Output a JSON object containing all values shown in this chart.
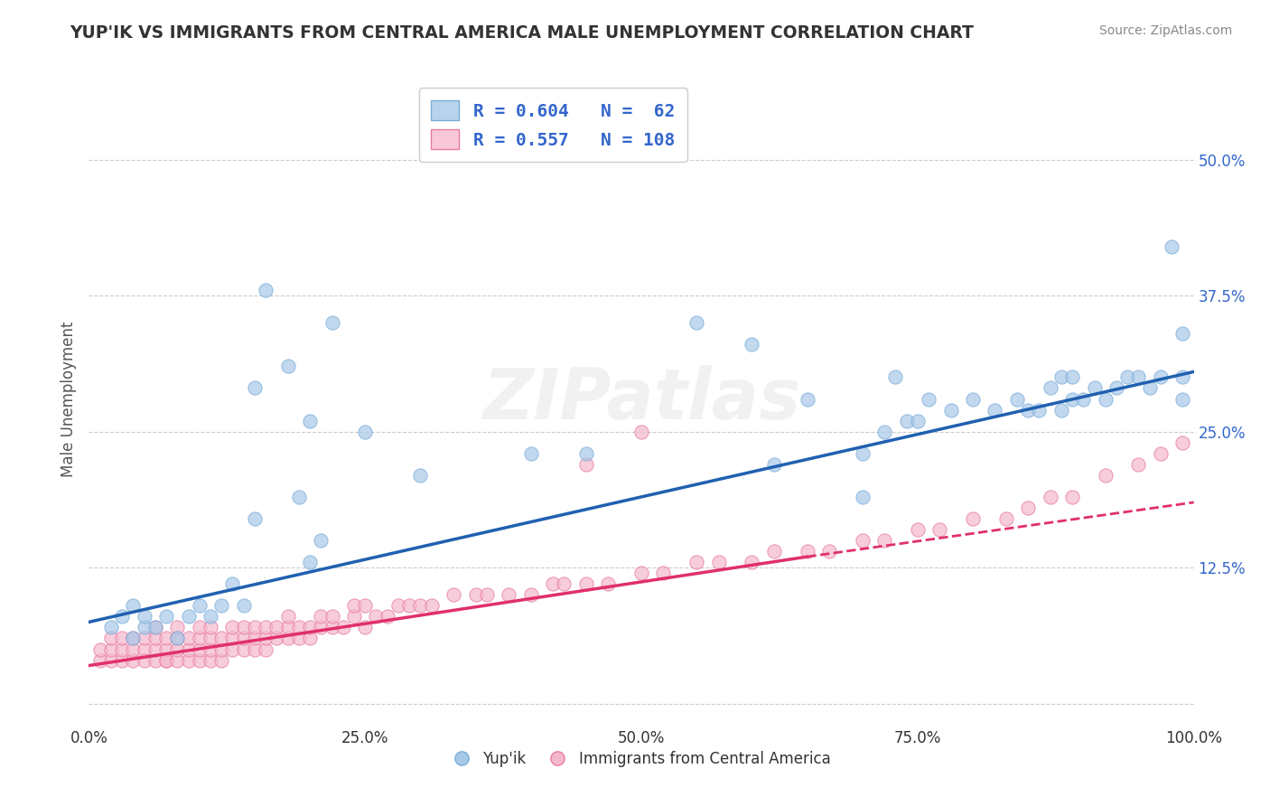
{
  "title": "YUP'IK VS IMMIGRANTS FROM CENTRAL AMERICA MALE UNEMPLOYMENT CORRELATION CHART",
  "source_text": "Source: ZipAtlas.com",
  "ylabel": "Male Unemployment",
  "watermark": "ZIPatlas",
  "blue_color": "#a8c8e8",
  "blue_edge": "#7aaddb",
  "pink_color": "#f4b8cc",
  "pink_edge": "#e87aa0",
  "trend_blue": "#2060b0",
  "trend_pink": "#e0306a",
  "background": "#ffffff",
  "grid_color": "#cccccc",
  "xlim": [
    0.0,
    1.0
  ],
  "ylim": [
    -0.02,
    0.58
  ],
  "xticks": [
    0.0,
    0.25,
    0.5,
    0.75,
    1.0
  ],
  "xticklabels": [
    "0.0%",
    "25.0%",
    "50.0%",
    "75.0%",
    "100.0%"
  ],
  "ytick_vals": [
    0.0,
    0.125,
    0.25,
    0.375,
    0.5
  ],
  "ytick_labels": [
    "",
    "12.5%",
    "25.0%",
    "37.5%",
    "50.0%"
  ],
  "trend_blue_x0": 0.0,
  "trend_blue_y0": 0.075,
  "trend_blue_x1": 1.0,
  "trend_blue_y1": 0.305,
  "trend_pink_x0": 0.0,
  "trend_pink_y0": 0.035,
  "trend_pink_x1": 0.65,
  "trend_pink_y1": 0.135,
  "trend_pink_dash_x0": 0.65,
  "trend_pink_dash_y0": 0.135,
  "trend_pink_dash_x1": 1.0,
  "trend_pink_dash_y1": 0.185,
  "yup_x": [
    0.02,
    0.03,
    0.04,
    0.04,
    0.05,
    0.05,
    0.06,
    0.07,
    0.08,
    0.09,
    0.1,
    0.11,
    0.12,
    0.13,
    0.14,
    0.15,
    0.16,
    0.18,
    0.19,
    0.2,
    0.21,
    0.22,
    0.3,
    0.4,
    0.45,
    0.55,
    0.62,
    0.65,
    0.7,
    0.72,
    0.73,
    0.74,
    0.75,
    0.76,
    0.78,
    0.8,
    0.82,
    0.84,
    0.85,
    0.86,
    0.87,
    0.88,
    0.88,
    0.89,
    0.89,
    0.9,
    0.91,
    0.92,
    0.93,
    0.94,
    0.95,
    0.96,
    0.97,
    0.98,
    0.99,
    0.99,
    0.99,
    0.15,
    0.2,
    0.25,
    0.6,
    0.7
  ],
  "yup_y": [
    0.07,
    0.08,
    0.06,
    0.09,
    0.07,
    0.08,
    0.07,
    0.08,
    0.06,
    0.08,
    0.09,
    0.08,
    0.09,
    0.11,
    0.09,
    0.29,
    0.38,
    0.31,
    0.19,
    0.26,
    0.15,
    0.35,
    0.21,
    0.23,
    0.23,
    0.35,
    0.22,
    0.28,
    0.23,
    0.25,
    0.3,
    0.26,
    0.26,
    0.28,
    0.27,
    0.28,
    0.27,
    0.28,
    0.27,
    0.27,
    0.29,
    0.27,
    0.3,
    0.28,
    0.3,
    0.28,
    0.29,
    0.28,
    0.29,
    0.3,
    0.3,
    0.29,
    0.3,
    0.42,
    0.28,
    0.3,
    0.34,
    0.17,
    0.13,
    0.25,
    0.33,
    0.19
  ],
  "imm_x": [
    0.01,
    0.01,
    0.02,
    0.02,
    0.02,
    0.03,
    0.03,
    0.03,
    0.04,
    0.04,
    0.04,
    0.05,
    0.05,
    0.05,
    0.06,
    0.06,
    0.06,
    0.06,
    0.07,
    0.07,
    0.07,
    0.07,
    0.08,
    0.08,
    0.08,
    0.08,
    0.09,
    0.09,
    0.09,
    0.1,
    0.1,
    0.1,
    0.1,
    0.11,
    0.11,
    0.11,
    0.11,
    0.12,
    0.12,
    0.12,
    0.13,
    0.13,
    0.13,
    0.14,
    0.14,
    0.14,
    0.15,
    0.15,
    0.15,
    0.16,
    0.16,
    0.16,
    0.17,
    0.17,
    0.18,
    0.18,
    0.18,
    0.19,
    0.19,
    0.2,
    0.2,
    0.21,
    0.21,
    0.22,
    0.22,
    0.23,
    0.24,
    0.24,
    0.25,
    0.25,
    0.26,
    0.27,
    0.28,
    0.29,
    0.3,
    0.31,
    0.33,
    0.35,
    0.36,
    0.38,
    0.4,
    0.42,
    0.43,
    0.45,
    0.47,
    0.5,
    0.52,
    0.55,
    0.57,
    0.6,
    0.62,
    0.65,
    0.67,
    0.7,
    0.72,
    0.75,
    0.77,
    0.8,
    0.83,
    0.85,
    0.87,
    0.89,
    0.92,
    0.95,
    0.97,
    0.99,
    0.45,
    0.5
  ],
  "imm_y": [
    0.04,
    0.05,
    0.04,
    0.05,
    0.06,
    0.04,
    0.05,
    0.06,
    0.04,
    0.05,
    0.06,
    0.05,
    0.06,
    0.04,
    0.04,
    0.05,
    0.06,
    0.07,
    0.04,
    0.05,
    0.06,
    0.04,
    0.04,
    0.05,
    0.06,
    0.07,
    0.04,
    0.05,
    0.06,
    0.04,
    0.05,
    0.06,
    0.07,
    0.04,
    0.05,
    0.06,
    0.07,
    0.04,
    0.05,
    0.06,
    0.05,
    0.06,
    0.07,
    0.05,
    0.06,
    0.07,
    0.05,
    0.06,
    0.07,
    0.05,
    0.06,
    0.07,
    0.06,
    0.07,
    0.06,
    0.07,
    0.08,
    0.06,
    0.07,
    0.06,
    0.07,
    0.07,
    0.08,
    0.07,
    0.08,
    0.07,
    0.08,
    0.09,
    0.07,
    0.09,
    0.08,
    0.08,
    0.09,
    0.09,
    0.09,
    0.09,
    0.1,
    0.1,
    0.1,
    0.1,
    0.1,
    0.11,
    0.11,
    0.11,
    0.11,
    0.12,
    0.12,
    0.13,
    0.13,
    0.13,
    0.14,
    0.14,
    0.14,
    0.15,
    0.15,
    0.16,
    0.16,
    0.17,
    0.17,
    0.18,
    0.19,
    0.19,
    0.21,
    0.22,
    0.23,
    0.24,
    0.22,
    0.25
  ]
}
